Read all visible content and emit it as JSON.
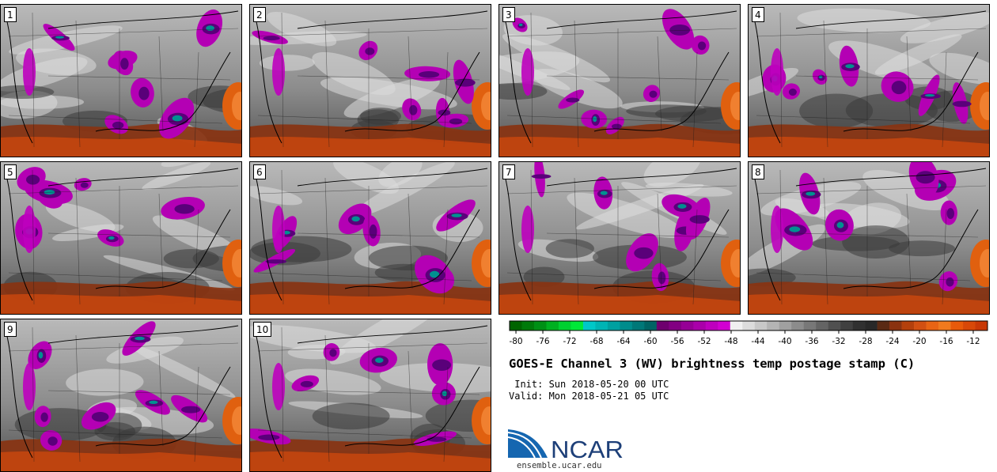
{
  "panels": [
    {
      "label": "1"
    },
    {
      "label": "2"
    },
    {
      "label": "3"
    },
    {
      "label": "4"
    },
    {
      "label": "5"
    },
    {
      "label": "6"
    },
    {
      "label": "7"
    },
    {
      "label": "8"
    },
    {
      "label": "9"
    },
    {
      "label": "10"
    }
  ],
  "colorbar": {
    "ticks": [
      "-80",
      "-76",
      "-72",
      "-68",
      "-64",
      "-60",
      "-56",
      "-52",
      "-48",
      "-44",
      "-40",
      "-36",
      "-32",
      "-28",
      "-24",
      "-20",
      "-16",
      "-12"
    ],
    "colors": [
      "#006400",
      "#007a0a",
      "#009015",
      "#00b020",
      "#00d030",
      "#00e838",
      "#00c8c8",
      "#00b4b4",
      "#00a0a0",
      "#008c8c",
      "#007878",
      "#006464",
      "#6e006e",
      "#820082",
      "#960096",
      "#aa00aa",
      "#be00be",
      "#d200d2",
      "#f0f0f0",
      "#dcdcdc",
      "#c8c8c8",
      "#b4b4b4",
      "#a0a0a0",
      "#8c8c8c",
      "#787878",
      "#646464",
      "#505050",
      "#404040",
      "#303030",
      "#282828",
      "#5a2a14",
      "#8a3210",
      "#b4400c",
      "#d25012",
      "#e86414",
      "#f07a1e",
      "#e85a0a",
      "#d84808",
      "#c83806"
    ]
  },
  "title": "GOES-E Channel 3 (WV) brightness temp postage stamp (C)",
  "init": " Init: Sun 2018-05-20 00 UTC",
  "valid": "Valid: Mon 2018-05-21 05 UTC",
  "logo_text": "NCAR",
  "site": "ensemble.ucar.edu"
}
